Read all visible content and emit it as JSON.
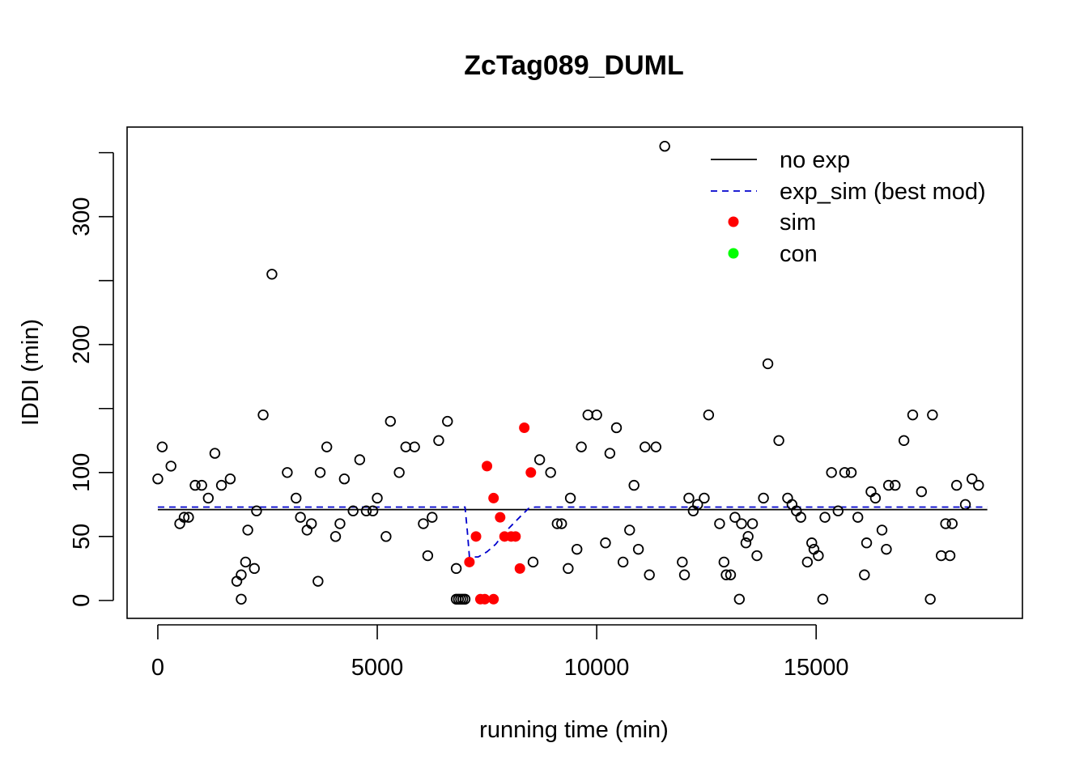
{
  "chart_data": {
    "type": "scatter",
    "title": "ZcTag089_DUML",
    "xlabel": "running time (min)",
    "ylabel": "IDDI (min)",
    "xlim": [
      -700,
      19700
    ],
    "ylim": [
      -14,
      370
    ],
    "x_ticks": [
      0,
      5000,
      10000,
      15000
    ],
    "x_tick_labels": [
      "0",
      "5000",
      "10000",
      "15000"
    ],
    "y_ticks": [
      0,
      50,
      100,
      150,
      200,
      250,
      300,
      350
    ],
    "y_tick_labels": [
      "0",
      "50",
      "100",
      "",
      "200",
      "",
      "300",
      ""
    ],
    "grid": false,
    "legend_position": "top-right",
    "legend": [
      {
        "label": "no exp",
        "kind": "solid-line",
        "color": "#000000"
      },
      {
        "label": "exp_sim  (best mod)",
        "kind": "dashed-line",
        "color": "#0000CD"
      },
      {
        "label": "sim",
        "kind": "filled-dot",
        "color": "#FF0000"
      },
      {
        "label": "con",
        "kind": "filled-dot",
        "color": "#00FF00"
      }
    ],
    "series": [
      {
        "name": "no exp",
        "kind": "line",
        "color": "#000000",
        "points": [
          [
            0,
            71
          ],
          [
            18900,
            71
          ]
        ]
      },
      {
        "name": "exp_sim  (best mod)",
        "kind": "dashed-line",
        "color": "#0000CD",
        "points": [
          [
            0,
            73
          ],
          [
            7000,
            73
          ],
          [
            7050,
            55
          ],
          [
            7100,
            34
          ],
          [
            7300,
            34
          ],
          [
            7500,
            38
          ],
          [
            7700,
            44
          ],
          [
            7900,
            53
          ],
          [
            8100,
            60
          ],
          [
            8300,
            67
          ],
          [
            8450,
            72
          ],
          [
            8600,
            73
          ],
          [
            18900,
            73
          ]
        ]
      },
      {
        "name": "sim",
        "kind": "filled-points",
        "color": "#FF0000",
        "points": [
          [
            7100,
            30
          ],
          [
            7250,
            50
          ],
          [
            7350,
            1
          ],
          [
            7450,
            1
          ],
          [
            7500,
            105
          ],
          [
            7650,
            1
          ],
          [
            7650,
            80
          ],
          [
            7800,
            65
          ],
          [
            7900,
            50
          ],
          [
            8050,
            50
          ],
          [
            8150,
            50
          ],
          [
            8250,
            25
          ],
          [
            8350,
            135
          ],
          [
            8500,
            100
          ]
        ]
      },
      {
        "name": "con",
        "kind": "filled-points",
        "color": "#00FF00",
        "points": []
      },
      {
        "name": "",
        "kind": "open-points",
        "color": "#000000",
        "points": [
          [
            0,
            95
          ],
          [
            100,
            120
          ],
          [
            300,
            105
          ],
          [
            500,
            60
          ],
          [
            600,
            65
          ],
          [
            700,
            65
          ],
          [
            850,
            90
          ],
          [
            1000,
            90
          ],
          [
            1150,
            80
          ],
          [
            1300,
            115
          ],
          [
            1450,
            90
          ],
          [
            1650,
            95
          ],
          [
            1800,
            15
          ],
          [
            1900,
            20
          ],
          [
            1900,
            1
          ],
          [
            2000,
            30
          ],
          [
            2050,
            55
          ],
          [
            2200,
            25
          ],
          [
            2250,
            70
          ],
          [
            2400,
            145
          ],
          [
            2600,
            255
          ],
          [
            2950,
            100
          ],
          [
            3150,
            80
          ],
          [
            3250,
            65
          ],
          [
            3400,
            55
          ],
          [
            3500,
            60
          ],
          [
            3650,
            15
          ],
          [
            3700,
            100
          ],
          [
            3850,
            120
          ],
          [
            4050,
            50
          ],
          [
            4150,
            60
          ],
          [
            4250,
            95
          ],
          [
            4450,
            70
          ],
          [
            4600,
            110
          ],
          [
            4750,
            70
          ],
          [
            4900,
            70
          ],
          [
            5000,
            80
          ],
          [
            5200,
            50
          ],
          [
            5300,
            140
          ],
          [
            5500,
            100
          ],
          [
            5650,
            120
          ],
          [
            5850,
            120
          ],
          [
            6050,
            60
          ],
          [
            6150,
            35
          ],
          [
            6250,
            65
          ],
          [
            6400,
            125
          ],
          [
            6600,
            140
          ],
          [
            6800,
            25
          ],
          [
            6800,
            1
          ],
          [
            6850,
            1
          ],
          [
            6900,
            1
          ],
          [
            6950,
            1
          ],
          [
            7000,
            1
          ],
          [
            8550,
            30
          ],
          [
            8700,
            110
          ],
          [
            8950,
            100
          ],
          [
            9100,
            60
          ],
          [
            9200,
            60
          ],
          [
            9350,
            25
          ],
          [
            9400,
            80
          ],
          [
            9550,
            40
          ],
          [
            9650,
            120
          ],
          [
            9800,
            145
          ],
          [
            10000,
            145
          ],
          [
            10200,
            45
          ],
          [
            10300,
            115
          ],
          [
            10450,
            135
          ],
          [
            10600,
            30
          ],
          [
            10750,
            55
          ],
          [
            10850,
            90
          ],
          [
            10950,
            40
          ],
          [
            11100,
            120
          ],
          [
            11200,
            20
          ],
          [
            11350,
            120
          ],
          [
            11550,
            355
          ],
          [
            11950,
            30
          ],
          [
            12000,
            20
          ],
          [
            12100,
            80
          ],
          [
            12200,
            70
          ],
          [
            12300,
            75
          ],
          [
            12450,
            80
          ],
          [
            12550,
            145
          ],
          [
            12800,
            60
          ],
          [
            12900,
            30
          ],
          [
            12950,
            20
          ],
          [
            13050,
            20
          ],
          [
            13150,
            65
          ],
          [
            13250,
            1
          ],
          [
            13300,
            60
          ],
          [
            13400,
            45
          ],
          [
            13450,
            50
          ],
          [
            13550,
            60
          ],
          [
            13650,
            35
          ],
          [
            13800,
            80
          ],
          [
            13900,
            185
          ],
          [
            14150,
            125
          ],
          [
            14350,
            80
          ],
          [
            14450,
            75
          ],
          [
            14550,
            70
          ],
          [
            14650,
            65
          ],
          [
            14800,
            30
          ],
          [
            14900,
            45
          ],
          [
            14950,
            40
          ],
          [
            15050,
            35
          ],
          [
            15150,
            1
          ],
          [
            15200,
            65
          ],
          [
            15350,
            100
          ],
          [
            15500,
            70
          ],
          [
            15650,
            100
          ],
          [
            15800,
            100
          ],
          [
            15950,
            65
          ],
          [
            16100,
            20
          ],
          [
            16150,
            45
          ],
          [
            16250,
            85
          ],
          [
            16350,
            80
          ],
          [
            16500,
            55
          ],
          [
            16600,
            40
          ],
          [
            16650,
            90
          ],
          [
            16800,
            90
          ],
          [
            17000,
            125
          ],
          [
            17200,
            145
          ],
          [
            17400,
            85
          ],
          [
            17600,
            1
          ],
          [
            17650,
            145
          ],
          [
            17850,
            35
          ],
          [
            17950,
            60
          ],
          [
            18050,
            35
          ],
          [
            18100,
            60
          ],
          [
            18200,
            90
          ],
          [
            18400,
            75
          ],
          [
            18550,
            95
          ],
          [
            18700,
            90
          ]
        ]
      }
    ]
  }
}
